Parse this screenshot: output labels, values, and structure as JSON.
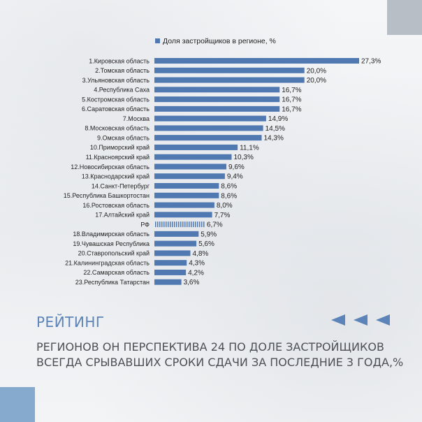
{
  "colors": {
    "bar": "#4f79b0",
    "accent": "#5c84b8",
    "text": "#222222",
    "subtitle": "#4d5056",
    "corner_top_right": "#b8bec6",
    "corner_bottom_left": "#86aacd"
  },
  "chart_data": {
    "type": "bar",
    "orientation": "horizontal",
    "legend": "Доля застройщиков в регионе, %",
    "legend_position": "top",
    "grid": false,
    "xlim": [
      0,
      27.3
    ],
    "categories": [
      "1.Кировская область",
      "2.Томская область",
      "3.Ульяновская область",
      "4.Республика Саха",
      "5.Костромская область",
      "6.Саратовская область",
      "7.Москва",
      "8.Московская область",
      "9.Омская область",
      "10.Приморский край",
      "11.Красноярский край",
      "12.Новосибирская область",
      "13.Краснодарский край",
      "14.Санкт-Петербург",
      "15.Республика Башкортостан",
      "16.Ростовская область",
      "17.Алтайский край",
      "РФ",
      "18.Владимирская область",
      "19.Чувашская Республика",
      "20.Ставропольский край",
      "21.Калининградская область",
      "22.Самарская область",
      "23.Республика Татарстан"
    ],
    "values": [
      27.3,
      20.0,
      20.0,
      16.7,
      16.7,
      16.7,
      14.9,
      14.5,
      14.3,
      11.1,
      10.3,
      9.6,
      9.4,
      8.6,
      8.6,
      8.0,
      7.7,
      6.7,
      5.9,
      5.6,
      4.8,
      4.3,
      4.2,
      3.6
    ],
    "value_labels": [
      "27,3%",
      "20,0%",
      "20,0%",
      "16,7%",
      "16,7%",
      "16,7%",
      "14,9%",
      "14,5%",
      "14,3%",
      "11,1%",
      "10,3%",
      "9,6%",
      "9,4%",
      "8,6%",
      "8,6%",
      "8,0%",
      "7,7%",
      "6,7%",
      "5,9%",
      "5,6%",
      "4,8%",
      "4,3%",
      "4,2%",
      "3,6%"
    ],
    "highlighted_category": "РФ"
  },
  "heading": "РЕЙТИНГ",
  "subtitle_lines": [
    "РЕГИОНОВ ОН ПЕРСПЕКТИВА 24 ПО ДОЛЕ ЗАСТРОЙЩИКОВ",
    "ВСЕГДА СРЫВАВШИХ СРОКИ СДАЧИ ЗА ПОСЛЕДНИЕ 3 ГОДА,%"
  ],
  "icons": {
    "arrows": "triangle-left-arrows-icon",
    "arrow_count": 3
  }
}
